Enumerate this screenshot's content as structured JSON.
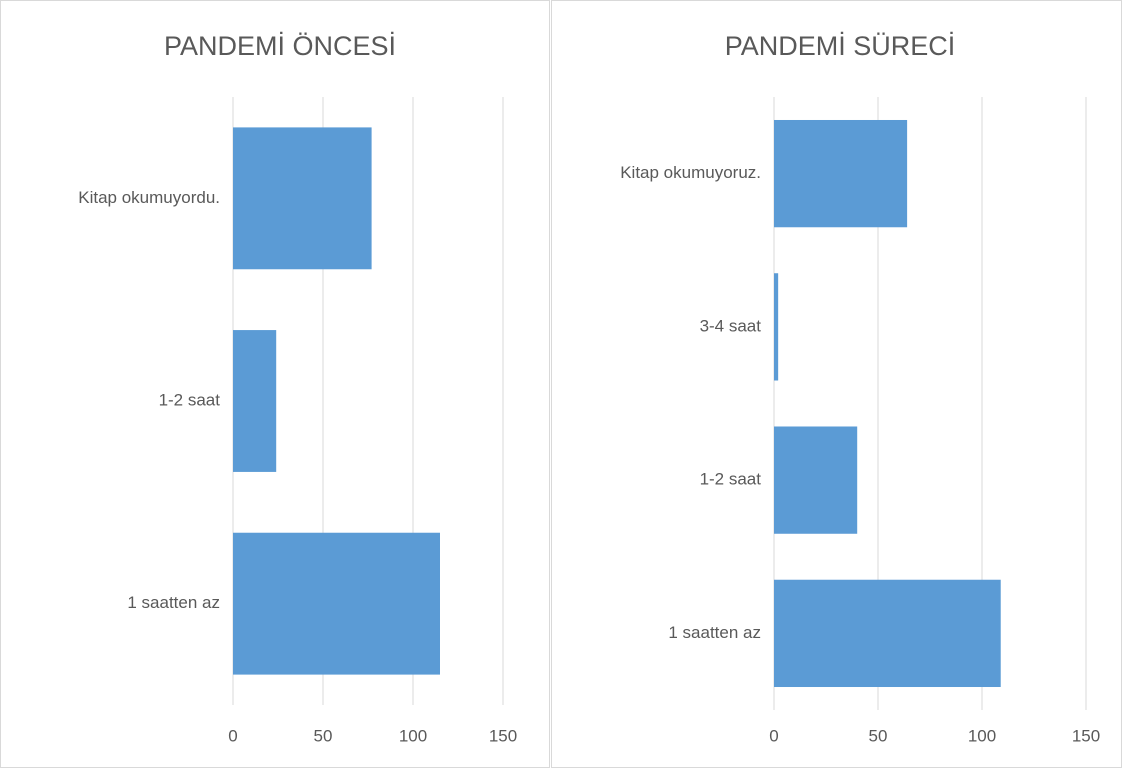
{
  "chart_data": [
    {
      "type": "bar",
      "orientation": "horizontal",
      "title": "PANDEMİ ÖNCESİ",
      "categories": [
        "Kitap okumuyordu.",
        "1-2 saat",
        "1 saatten az"
      ],
      "values": [
        77,
        24,
        115
      ],
      "color": "#5b9bd5",
      "xlim": [
        0,
        150
      ],
      "xticks": [
        0,
        50,
        100,
        150
      ],
      "grid": true
    },
    {
      "type": "bar",
      "orientation": "horizontal",
      "title": "PANDEMİ SÜRECİ",
      "categories": [
        "Kitap okumuyoruz.",
        "3-4 saat",
        "1-2 saat",
        "1 saatten az"
      ],
      "values": [
        64,
        2,
        40,
        109
      ],
      "color": "#5b9bd5",
      "xlim": [
        0,
        150
      ],
      "xticks": [
        0,
        50,
        100,
        150
      ],
      "grid": true
    }
  ]
}
